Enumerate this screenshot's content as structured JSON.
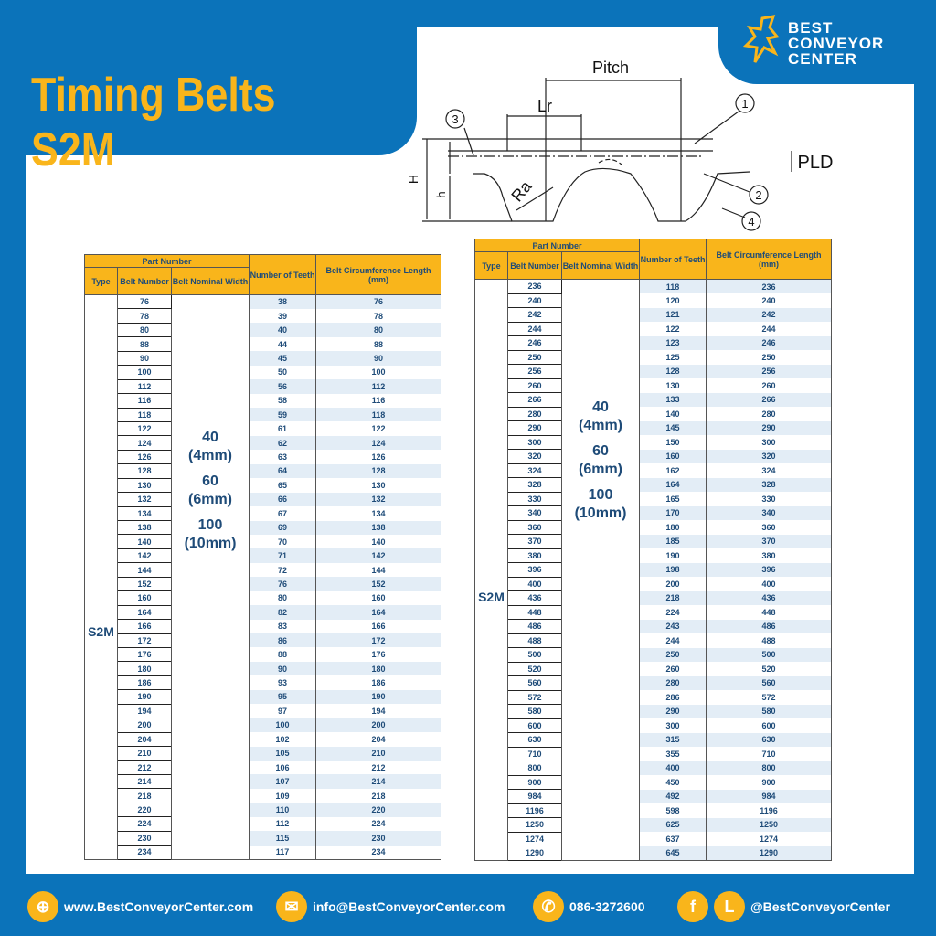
{
  "title": "Timing Belts S2M",
  "logo": {
    "line1": "BEST",
    "line2": "CONVEYOR",
    "line3": "CENTER"
  },
  "diagram": {
    "pitch": "Pitch",
    "lr": "Lr",
    "ra": "Ra",
    "H": "H",
    "h": "h",
    "pld": "PLD",
    "n1": "1",
    "n2": "2",
    "n3": "3",
    "n4": "4"
  },
  "table_headers": {
    "part_number": "Part Number",
    "type": "Type",
    "belt_number": "Belt Number",
    "nominal_width": "Belt Nominal Width",
    "teeth": "Number of Teeth",
    "length": "Belt Circumference Length (mm)"
  },
  "type_value": "S2M",
  "widths": [
    [
      "40",
      "(4mm)"
    ],
    [
      "60",
      "(6mm)"
    ],
    [
      "100",
      "(10mm)"
    ]
  ],
  "tables": [
    {
      "rows": [
        [
          76,
          38,
          76
        ],
        [
          78,
          39,
          78
        ],
        [
          80,
          40,
          80
        ],
        [
          88,
          44,
          88
        ],
        [
          90,
          45,
          90
        ],
        [
          100,
          50,
          100
        ],
        [
          112,
          56,
          112
        ],
        [
          116,
          58,
          116
        ],
        [
          118,
          59,
          118
        ],
        [
          122,
          61,
          122
        ],
        [
          124,
          62,
          124
        ],
        [
          126,
          63,
          126
        ],
        [
          128,
          64,
          128
        ],
        [
          130,
          65,
          130
        ],
        [
          132,
          66,
          132
        ],
        [
          134,
          67,
          134
        ],
        [
          138,
          69,
          138
        ],
        [
          140,
          70,
          140
        ],
        [
          142,
          71,
          142
        ],
        [
          144,
          72,
          144
        ],
        [
          152,
          76,
          152
        ],
        [
          160,
          80,
          160
        ],
        [
          164,
          82,
          164
        ],
        [
          166,
          83,
          166
        ],
        [
          172,
          86,
          172
        ],
        [
          176,
          88,
          176
        ],
        [
          180,
          90,
          180
        ],
        [
          186,
          93,
          186
        ],
        [
          190,
          95,
          190
        ],
        [
          194,
          97,
          194
        ],
        [
          200,
          100,
          200
        ],
        [
          204,
          102,
          204
        ],
        [
          210,
          105,
          210
        ],
        [
          212,
          106,
          212
        ],
        [
          214,
          107,
          214
        ],
        [
          218,
          109,
          218
        ],
        [
          220,
          110,
          220
        ],
        [
          224,
          112,
          224
        ],
        [
          230,
          115,
          230
        ],
        [
          234,
          117,
          234
        ]
      ]
    },
    {
      "rows": [
        [
          236,
          118,
          236
        ],
        [
          240,
          120,
          240
        ],
        [
          242,
          121,
          242
        ],
        [
          244,
          122,
          244
        ],
        [
          246,
          123,
          246
        ],
        [
          250,
          125,
          250
        ],
        [
          256,
          128,
          256
        ],
        [
          260,
          130,
          260
        ],
        [
          266,
          133,
          266
        ],
        [
          280,
          140,
          280
        ],
        [
          290,
          145,
          290
        ],
        [
          300,
          150,
          300
        ],
        [
          320,
          160,
          320
        ],
        [
          324,
          162,
          324
        ],
        [
          328,
          164,
          328
        ],
        [
          330,
          165,
          330
        ],
        [
          340,
          170,
          340
        ],
        [
          360,
          180,
          360
        ],
        [
          370,
          185,
          370
        ],
        [
          380,
          190,
          380
        ],
        [
          396,
          198,
          396
        ],
        [
          400,
          200,
          400
        ],
        [
          436,
          218,
          436
        ],
        [
          448,
          224,
          448
        ],
        [
          486,
          243,
          486
        ],
        [
          488,
          244,
          488
        ],
        [
          500,
          250,
          500
        ],
        [
          520,
          260,
          520
        ],
        [
          560,
          280,
          560
        ],
        [
          572,
          286,
          572
        ],
        [
          580,
          290,
          580
        ],
        [
          600,
          300,
          600
        ],
        [
          630,
          315,
          630
        ],
        [
          710,
          355,
          710
        ],
        [
          800,
          400,
          800
        ],
        [
          900,
          450,
          900
        ],
        [
          984,
          492,
          984
        ],
        [
          1196,
          598,
          1196
        ],
        [
          1250,
          625,
          1250
        ],
        [
          1274,
          637,
          1274
        ],
        [
          1290,
          645,
          1290
        ]
      ]
    }
  ],
  "footer": {
    "website": "www.BestConveyorCenter.com",
    "email": "info@BestConveyorCenter.com",
    "phone": "086-3272600",
    "social": "@BestConveyorCenter",
    "facebook_letter": "f",
    "line_letter": "L"
  },
  "colors": {
    "brand_blue": "#0b73ba",
    "accent_yellow": "#f9b51b",
    "text_navy": "#1e4b78",
    "stripe": "#e3edf6"
  }
}
